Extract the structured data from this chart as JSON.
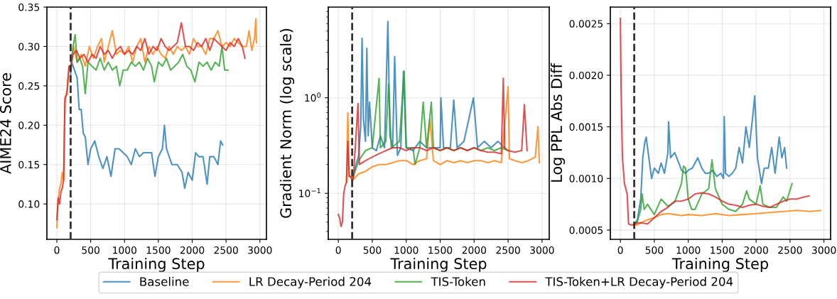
{
  "chart_data": [
    {
      "type": "line",
      "xlabel": "Training Step",
      "ylabel": "AIME24 Score",
      "xlim": [
        -147,
        3097
      ],
      "xticks": [
        0,
        500,
        1000,
        1500,
        2000,
        2500,
        3000
      ],
      "ylim": [
        0.055,
        0.35
      ],
      "yticks": [
        {
          "value": 0.1,
          "label": "0.10"
        },
        {
          "value": 0.15,
          "label": "0.15"
        },
        {
          "value": 0.2,
          "label": "0.20"
        },
        {
          "value": 0.25,
          "label": "0.25"
        },
        {
          "value": 0.3,
          "label": "0.30"
        },
        {
          "value": 0.35,
          "label": "0.35"
        }
      ],
      "grid": true,
      "legend": "bottom",
      "line_style": "solid",
      "marker": "none",
      "ref_lines": [
        {
          "axis": "x",
          "value": 204,
          "color": "#333333",
          "line_style": "dashed"
        }
      ],
      "series": [
        {
          "name": "Baseline",
          "color": "#1f77b4",
          "x": [
            200,
            220,
            260,
            300,
            330,
            360,
            390,
            420,
            460,
            500,
            560,
            620,
            680,
            740,
            800,
            860,
            920,
            980,
            1040,
            1100,
            1160,
            1220,
            1280,
            1340,
            1400,
            1450,
            1500,
            1560,
            1590,
            1620,
            1700,
            1780,
            1850,
            1890,
            1940,
            2000,
            2050,
            2100,
            2160,
            2220,
            2260,
            2320,
            2380,
            2420,
            2450
          ],
          "values": [
            0.26,
            0.28,
            0.27,
            0.26,
            0.22,
            0.22,
            0.19,
            0.185,
            0.15,
            0.17,
            0.18,
            0.16,
            0.145,
            0.16,
            0.135,
            0.17,
            0.17,
            0.165,
            0.16,
            0.15,
            0.17,
            0.16,
            0.165,
            0.165,
            0.165,
            0.135,
            0.16,
            0.17,
            0.2,
            0.17,
            0.15,
            0.15,
            0.14,
            0.12,
            0.14,
            0.13,
            0.165,
            0.16,
            0.16,
            0.125,
            0.16,
            0.16,
            0.15,
            0.18,
            0.175
          ]
        },
        {
          "name": "LR Decay-Period 204",
          "color": "#ff7f0e",
          "x": [
            0,
            20,
            40,
            60,
            80,
            100,
            120,
            150,
            180,
            200,
            250,
            300,
            360,
            420,
            480,
            540,
            600,
            660,
            700,
            760,
            820,
            880,
            940,
            1000,
            1060,
            1120,
            1180,
            1240,
            1300,
            1360,
            1420,
            1480,
            1540,
            1600,
            1660,
            1720,
            1780,
            1840,
            1900,
            1960,
            2020,
            2080,
            2140,
            2200,
            2260,
            2320,
            2380,
            2440,
            2500,
            2560,
            2620,
            2680,
            2740,
            2800,
            2840,
            2880,
            2920,
            2940,
            2950
          ],
          "values": [
            0.07,
            0.105,
            0.12,
            0.125,
            0.14,
            0.13,
            0.23,
            0.245,
            0.275,
            0.27,
            0.3,
            0.28,
            0.29,
            0.275,
            0.3,
            0.285,
            0.3,
            0.31,
            0.28,
            0.3,
            0.32,
            0.29,
            0.295,
            0.29,
            0.3,
            0.28,
            0.3,
            0.31,
            0.28,
            0.3,
            0.29,
            0.3,
            0.29,
            0.285,
            0.3,
            0.29,
            0.3,
            0.295,
            0.3,
            0.29,
            0.31,
            0.3,
            0.3,
            0.29,
            0.31,
            0.31,
            0.32,
            0.3,
            0.305,
            0.3,
            0.31,
            0.305,
            0.3,
            0.3,
            0.32,
            0.295,
            0.31,
            0.335,
            0.305
          ]
        },
        {
          "name": "TIS-Token",
          "color": "#2ca02c",
          "x": [
            200,
            240,
            270,
            300,
            340,
            380,
            420,
            460,
            520,
            580,
            640,
            700,
            760,
            820,
            880,
            930,
            980,
            1040,
            1100,
            1160,
            1220,
            1280,
            1340,
            1400,
            1440,
            1500,
            1560,
            1620,
            1680,
            1740,
            1800,
            1860,
            1920,
            1980,
            2040,
            2100,
            2160,
            2220,
            2280,
            2340,
            2400,
            2440,
            2480,
            2530
          ],
          "values": [
            0.27,
            0.3,
            0.315,
            0.28,
            0.285,
            0.275,
            0.24,
            0.28,
            0.275,
            0.27,
            0.285,
            0.27,
            0.28,
            0.27,
            0.275,
            0.25,
            0.27,
            0.27,
            0.28,
            0.275,
            0.28,
            0.27,
            0.285,
            0.275,
            0.255,
            0.28,
            0.275,
            0.285,
            0.27,
            0.275,
            0.28,
            0.29,
            0.275,
            0.27,
            0.255,
            0.28,
            0.275,
            0.28,
            0.27,
            0.28,
            0.275,
            0.3,
            0.27,
            0.27
          ]
        },
        {
          "name": "TIS-Token+LR Decay-Period 204",
          "color": "#d62728",
          "x": [
            0,
            20,
            40,
            60,
            80,
            100,
            120,
            150,
            180,
            200,
            240,
            290,
            340,
            400,
            460,
            520,
            580,
            640,
            700,
            760,
            820,
            880,
            940,
            1000,
            1060,
            1120,
            1180,
            1240,
            1300,
            1360,
            1420,
            1480,
            1540,
            1600,
            1660,
            1720,
            1780,
            1840,
            1900,
            1960,
            2020,
            2080,
            2140,
            2200,
            2260,
            2320,
            2380,
            2440,
            2500,
            2560,
            2620,
            2680,
            2740,
            2780
          ],
          "values": [
            0.08,
            0.108,
            0.1,
            0.115,
            0.12,
            0.13,
            0.235,
            0.24,
            0.275,
            0.27,
            0.29,
            0.295,
            0.285,
            0.29,
            0.28,
            0.29,
            0.285,
            0.3,
            0.29,
            0.295,
            0.285,
            0.295,
            0.3,
            0.29,
            0.295,
            0.29,
            0.3,
            0.295,
            0.31,
            0.29,
            0.3,
            0.295,
            0.31,
            0.3,
            0.295,
            0.3,
            0.305,
            0.33,
            0.3,
            0.3,
            0.295,
            0.305,
            0.3,
            0.31,
            0.295,
            0.31,
            0.305,
            0.3,
            0.295,
            0.305,
            0.3,
            0.31,
            0.3,
            0.285
          ]
        }
      ]
    },
    {
      "type": "line",
      "xlabel": "Training Step",
      "ylabel": "Gradient Norm (log scale)",
      "log": "y",
      "xlim": [
        -148,
        3106
      ],
      "xticks": [
        0,
        500,
        1000,
        1500,
        2000,
        2500,
        3000
      ],
      "ylim": [
        0.033,
        8.9
      ],
      "yticks": [
        {
          "value": 0.1,
          "label": "10$^{−1}$"
        },
        {
          "value": 1,
          "label": "10$^{0}$"
        }
      ],
      "grid": true,
      "line_style": "solid",
      "marker": "none",
      "ref_lines": [
        {
          "axis": "x",
          "value": 204,
          "color": "#333333",
          "line_style": "dashed"
        }
      ],
      "series": [
        {
          "name": "Baseline",
          "color": "#1f77b4",
          "x": [
            200,
            220,
            260,
            300,
            330,
            350,
            370,
            400,
            420,
            440,
            460,
            500,
            560,
            620,
            680,
            730,
            760,
            800,
            830,
            870,
            920,
            960,
            1000,
            1100,
            1200,
            1300,
            1400,
            1500,
            1510,
            1550,
            1650,
            1700,
            1750,
            1850,
            1990,
            2050,
            2150,
            2250,
            2350,
            2450
          ],
          "values": [
            0.14,
            0.15,
            0.2,
            0.25,
            0.5,
            4.2,
            0.6,
            0.35,
            3.3,
            0.4,
            0.9,
            0.3,
            0.28,
            0.4,
            0.3,
            6.3,
            0.4,
            0.3,
            2.7,
            0.25,
            0.3,
            1.9,
            0.3,
            0.28,
            0.35,
            0.3,
            0.3,
            0.3,
            1.0,
            0.3,
            0.3,
            0.95,
            0.3,
            0.35,
            1.0,
            0.3,
            0.35,
            0.3,
            0.35,
            0.3
          ]
        },
        {
          "name": "LR Decay-Period 204",
          "color": "#ff7f0e",
          "x": [
            120,
            140,
            160,
            180,
            200,
            220,
            300,
            400,
            500,
            600,
            700,
            800,
            900,
            1000,
            1100,
            1200,
            1300,
            1350,
            1400,
            1500,
            1600,
            1700,
            1800,
            1900,
            2000,
            2100,
            2200,
            2300,
            2400,
            2500,
            2520,
            2600,
            2700,
            2800,
            2900,
            2940,
            2960
          ],
          "values": [
            0.13,
            0.7,
            0.15,
            0.15,
            0.14,
            0.14,
            0.16,
            0.17,
            0.19,
            0.2,
            0.2,
            0.21,
            0.22,
            0.22,
            0.2,
            0.22,
            0.23,
            0.6,
            0.22,
            0.2,
            0.22,
            0.21,
            0.22,
            0.21,
            0.22,
            0.22,
            0.21,
            0.22,
            0.21,
            1.3,
            0.23,
            0.22,
            0.21,
            0.22,
            0.24,
            0.5,
            0.21
          ]
        },
        {
          "name": "TIS-Token",
          "color": "#2ca02c",
          "x": [
            200,
            220,
            300,
            400,
            500,
            600,
            620,
            700,
            740,
            780,
            900,
            970,
            1000,
            1100,
            1130,
            1200,
            1250,
            1300,
            1370,
            1400,
            1500,
            1600,
            1700,
            1800,
            1900,
            2000,
            2100,
            2200,
            2300,
            2400,
            2500
          ],
          "values": [
            0.14,
            0.15,
            0.22,
            0.28,
            0.3,
            1.6,
            0.3,
            0.35,
            1.4,
            0.3,
            0.35,
            1.9,
            0.3,
            0.3,
            0.2,
            0.3,
            0.9,
            0.3,
            0.9,
            0.3,
            0.28,
            0.3,
            0.28,
            0.3,
            0.28,
            0.3,
            0.28,
            0.3,
            0.28,
            0.3,
            0.28
          ]
        },
        {
          "name": "TIS-Token+LR Decay-Period 204",
          "color": "#d62728",
          "x": [
            0,
            20,
            40,
            60,
            80,
            100,
            120,
            140,
            160,
            180,
            200,
            220,
            290,
            310,
            400,
            500,
            600,
            700,
            800,
            900,
            1000,
            1100,
            1200,
            1300,
            1400,
            1500,
            1600,
            1700,
            1800,
            1900,
            2000,
            2100,
            2200,
            2300,
            2400,
            2430,
            2450,
            2500,
            2600,
            2700,
            2740,
            2780
          ],
          "values": [
            0.06,
            0.055,
            0.045,
            0.05,
            0.1,
            0.12,
            0.13,
            0.35,
            0.15,
            0.15,
            0.14,
            0.14,
            0.87,
            0.2,
            0.22,
            0.24,
            0.26,
            0.28,
            0.3,
            0.3,
            0.28,
            0.3,
            0.3,
            0.28,
            0.3,
            0.28,
            0.3,
            0.28,
            0.3,
            0.28,
            0.3,
            0.28,
            0.27,
            0.27,
            0.26,
            1.6,
            0.3,
            0.28,
            0.27,
            0.28,
            0.85,
            0.28
          ]
        }
      ]
    },
    {
      "type": "line",
      "xlabel": "Training Step",
      "ylabel": "Log PPL Abs Diff",
      "xlim": [
        -148,
        3098
      ],
      "xticks": [
        0,
        500,
        1000,
        1500,
        2000,
        2500,
        3000
      ],
      "ylim": [
        0.00041,
        0.00266
      ],
      "yticks": [
        {
          "value": 0.0005,
          "label": "0.0005"
        },
        {
          "value": 0.001,
          "label": "0.0010"
        },
        {
          "value": 0.0015,
          "label": "0.0015"
        },
        {
          "value": 0.002,
          "label": "0.0020"
        },
        {
          "value": 0.0025,
          "label": "0.0025"
        }
      ],
      "grid": true,
      "line_style": "solid",
      "marker": "none",
      "ref_lines": [
        {
          "axis": "x",
          "value": 204,
          "color": "#333333",
          "line_style": "dashed"
        }
      ],
      "series": [
        {
          "name": "Baseline",
          "color": "#1f77b4",
          "x": [
            200,
            250,
            300,
            330,
            360,
            380,
            420,
            460,
            500,
            560,
            600,
            650,
            700,
            710,
            740,
            800,
            860,
            900,
            960,
            1000,
            1060,
            1100,
            1140,
            1200,
            1250,
            1300,
            1360,
            1420,
            1480,
            1520,
            1530,
            1550,
            1600,
            1650,
            1700,
            1750,
            1800,
            1850,
            1900,
            1950,
            1980,
            2020,
            2080,
            2120,
            2180,
            2230,
            2280,
            2340,
            2380,
            2420,
            2450
          ],
          "values": [
            0.00055,
            0.0006,
            0.0008,
            0.0012,
            0.00135,
            0.0014,
            0.0012,
            0.001,
            0.0011,
            0.00105,
            0.00115,
            0.00105,
            0.00125,
            0.00155,
            0.0012,
            0.00125,
            0.00115,
            0.00108,
            0.00105,
            0.00108,
            0.0011,
            0.00115,
            0.0012,
            0.0011,
            0.00105,
            0.00105,
            0.00108,
            0.00102,
            0.00105,
            0.001,
            0.0016,
            0.00105,
            0.00102,
            0.00105,
            0.0011,
            0.0013,
            0.00115,
            0.0015,
            0.0013,
            0.0016,
            0.0018,
            0.0012,
            0.00095,
            0.0011,
            0.0011,
            0.0013,
            0.00105,
            0.0014,
            0.0012,
            0.0013,
            0.0011
          ]
        },
        {
          "name": "LR Decay-Period 204",
          "color": "#ff7f0e",
          "x": [
            200,
            250,
            300,
            400,
            500,
            600,
            700,
            800,
            900,
            1000,
            1200,
            1400,
            1600,
            1800,
            2000,
            2200,
            2400,
            2600,
            2800,
            2950
          ],
          "values": [
            0.00055,
            0.00055,
            0.00057,
            0.0006,
            0.00062,
            0.00065,
            0.00066,
            0.00065,
            0.00064,
            0.00065,
            0.00064,
            0.00066,
            0.00064,
            0.00065,
            0.00066,
            0.00067,
            0.00068,
            0.00069,
            0.00068,
            0.00069
          ]
        },
        {
          "name": "TIS-Token",
          "color": "#2ca02c",
          "x": [
            200,
            250,
            300,
            320,
            350,
            400,
            450,
            500,
            600,
            700,
            800,
            900,
            930,
            960,
            1000,
            1050,
            1100,
            1200,
            1300,
            1350,
            1400,
            1500,
            1600,
            1700,
            1800,
            1860,
            1900,
            2000,
            2060,
            2100,
            2200,
            2300,
            2400,
            2450,
            2530
          ],
          "values": [
            0.00055,
            0.00058,
            0.0007,
            0.00085,
            0.0007,
            0.00075,
            0.0007,
            0.00065,
            0.0008,
            0.00073,
            0.00077,
            0.00095,
            0.00112,
            0.0011,
            0.0008,
            0.0007,
            0.0007,
            0.00085,
            0.0009,
            0.00118,
            0.0009,
            0.00075,
            0.0007,
            0.00068,
            0.00075,
            0.00088,
            0.0008,
            0.00075,
            0.00093,
            0.00075,
            0.00072,
            0.00072,
            0.00082,
            0.00078,
            0.00095
          ]
        },
        {
          "name": "TIS-Token+LR Decay-Period 204",
          "color": "#d62728",
          "x": [
            0,
            10,
            30,
            60,
            100,
            120,
            150,
            200,
            250,
            300,
            400,
            500,
            600,
            700,
            800,
            900,
            1000,
            1100,
            1200,
            1300,
            1400,
            1500,
            1600,
            1700,
            1800,
            1900,
            2000,
            2100,
            2200,
            2300,
            2400,
            2500,
            2600,
            2700,
            2780
          ],
          "values": [
            0.00255,
            0.0019,
            0.0012,
            0.00095,
            0.00085,
            0.00056,
            0.00055,
            0.00055,
            0.00057,
            0.00057,
            0.00056,
            0.00062,
            0.00068,
            0.00072,
            0.00078,
            0.00078,
            0.0008,
            0.00085,
            0.00086,
            0.00085,
            0.00082,
            0.00078,
            0.00075,
            0.00074,
            0.00072,
            0.00074,
            0.00075,
            0.00073,
            0.00072,
            0.00075,
            0.00078,
            0.0008,
            0.0008,
            0.00082,
            0.00083
          ]
        }
      ]
    }
  ]
}
